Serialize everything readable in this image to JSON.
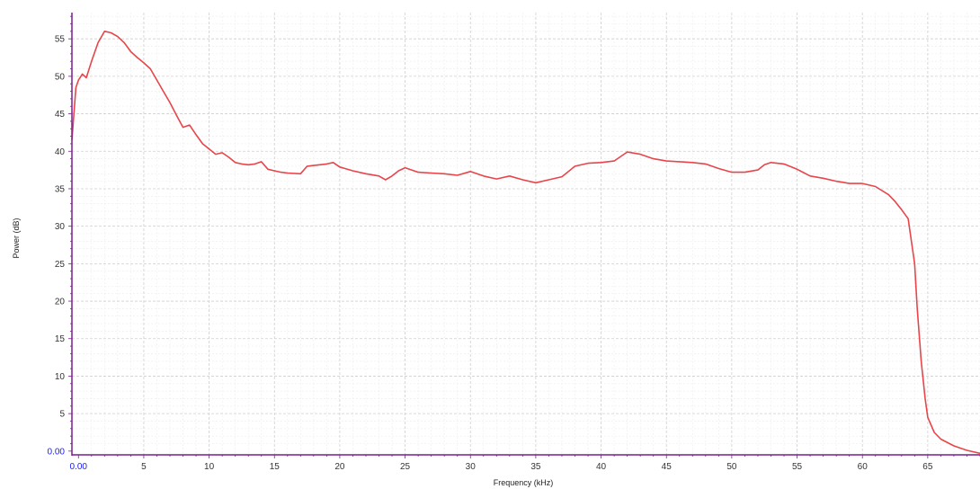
{
  "chart_data": {
    "type": "line",
    "title": "",
    "xlabel": "Frequency (kHz)",
    "ylabel": "Power (dB)",
    "xlim": [
      -0.5,
      69
    ],
    "ylim": [
      -0.5,
      58.5
    ],
    "grid": true,
    "colors": {
      "line": "#e8454a",
      "axis": "#7a1f8f",
      "grid": "#cfcfcf",
      "origin_label": "#1a1aff"
    },
    "x_ticks": [
      {
        "value": 0,
        "label": "0.00"
      },
      {
        "value": 5,
        "label": "5"
      },
      {
        "value": 10,
        "label": "10"
      },
      {
        "value": 15,
        "label": "15"
      },
      {
        "value": 20,
        "label": "20"
      },
      {
        "value": 25,
        "label": "25"
      },
      {
        "value": 30,
        "label": "30"
      },
      {
        "value": 35,
        "label": "35"
      },
      {
        "value": 40,
        "label": "40"
      },
      {
        "value": 45,
        "label": "45"
      },
      {
        "value": 50,
        "label": "50"
      },
      {
        "value": 55,
        "label": "55"
      },
      {
        "value": 60,
        "label": "60"
      },
      {
        "value": 65,
        "label": "65"
      }
    ],
    "y_ticks": [
      {
        "value": 0,
        "label": "0.00"
      },
      {
        "value": 5,
        "label": "5"
      },
      {
        "value": 10,
        "label": "10"
      },
      {
        "value": 15,
        "label": "15"
      },
      {
        "value": 20,
        "label": "20"
      },
      {
        "value": 25,
        "label": "25"
      },
      {
        "value": 30,
        "label": "30"
      },
      {
        "value": 35,
        "label": "35"
      },
      {
        "value": 40,
        "label": "40"
      },
      {
        "value": 45,
        "label": "45"
      },
      {
        "value": 50,
        "label": "50"
      },
      {
        "value": 55,
        "label": "55"
      }
    ],
    "series": [
      {
        "x": [
          -0.5,
          -0.2,
          0,
          0.3,
          0.6,
          1.0,
          1.5,
          2.0,
          2.5,
          3.0,
          3.5,
          4.0,
          4.5,
          5.0,
          5.5,
          6.0,
          6.5,
          7.0,
          7.5,
          8.0,
          8.5,
          9.0,
          9.5,
          10.0,
          10.5,
          11.0,
          11.5,
          12.0,
          12.5,
          13.0,
          13.5,
          14.0,
          14.5,
          15.0,
          15.5,
          16.0,
          17.0,
          17.5,
          18.0,
          19.0,
          19.5,
          20.0,
          21.0,
          22.0,
          23.0,
          23.5,
          24.0,
          24.5,
          25.0,
          26.0,
          27.0,
          28.0,
          29.0,
          30.0,
          31.0,
          32.0,
          33.0,
          34.0,
          35.0,
          36.0,
          37.0,
          38.0,
          39.0,
          40.0,
          41.0,
          42.0,
          43.0,
          44.0,
          45.0,
          46.0,
          47.0,
          48.0,
          49.0,
          50.0,
          51.0,
          52.0,
          52.5,
          53.0,
          54.0,
          55.0,
          56.0,
          57.0,
          58.0,
          59.0,
          60.0,
          61.0,
          62.0,
          62.5,
          63.0,
          63.5,
          64.0,
          64.2,
          64.5,
          64.8,
          65.0,
          65.5,
          66.0,
          67.0,
          68.0,
          69.0
        ],
        "y": [
          41.5,
          48.5,
          49.5,
          50.3,
          49.8,
          52.0,
          54.5,
          56.0,
          55.8,
          55.3,
          54.5,
          53.3,
          52.5,
          51.8,
          51.0,
          49.5,
          48.0,
          46.5,
          44.8,
          43.2,
          43.5,
          42.2,
          41.0,
          40.3,
          39.6,
          39.8,
          39.2,
          38.5,
          38.3,
          38.2,
          38.3,
          38.6,
          37.6,
          37.4,
          37.2,
          37.1,
          37.0,
          38.0,
          38.1,
          38.3,
          38.5,
          37.9,
          37.4,
          37.0,
          36.7,
          36.2,
          36.7,
          37.4,
          37.8,
          37.2,
          37.1,
          37.0,
          36.8,
          37.3,
          36.7,
          36.3,
          36.7,
          36.2,
          35.8,
          36.2,
          36.6,
          38.0,
          38.4,
          38.5,
          38.7,
          39.9,
          39.6,
          39.0,
          38.7,
          38.6,
          38.5,
          38.3,
          37.7,
          37.2,
          37.2,
          37.5,
          38.2,
          38.5,
          38.3,
          37.6,
          36.7,
          36.4,
          36.0,
          35.7,
          35.7,
          35.3,
          34.2,
          33.3,
          32.2,
          31.0,
          25.0,
          19.0,
          12.0,
          7.0,
          4.5,
          2.5,
          1.6,
          0.7,
          0.1,
          -0.3
        ]
      }
    ]
  }
}
